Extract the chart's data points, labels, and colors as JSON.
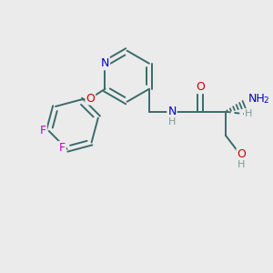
{
  "background_color": "#ebebeb",
  "bond_color": "#3a6b6b",
  "atom_colors": {
    "N": "#0000cc",
    "O": "#cc0000",
    "F": "#cc00cc",
    "C": "#3a6b6b",
    "H": "#7a9a9a"
  },
  "figsize": [
    3.0,
    3.0
  ],
  "dpi": 100,
  "bond_lw": 1.4
}
